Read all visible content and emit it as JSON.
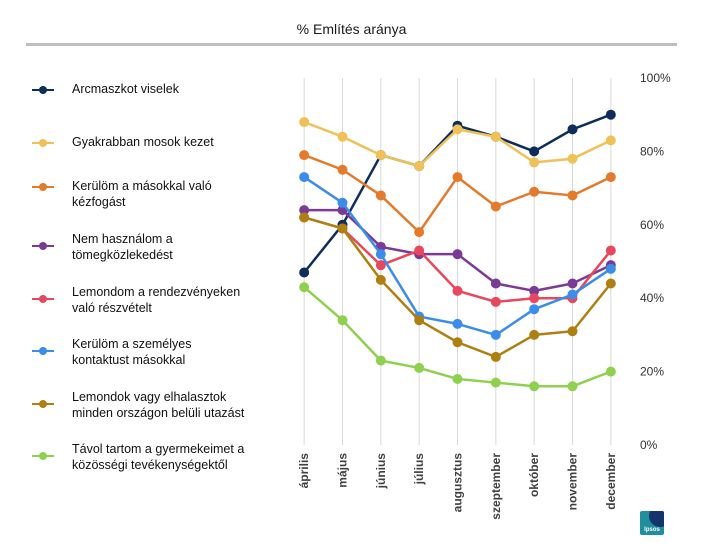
{
  "chart_data": {
    "type": "line",
    "title": "% Említés aránya",
    "categories": [
      "április",
      "május",
      "június",
      "július",
      "augusztus",
      "szeptember",
      "október",
      "november",
      "december"
    ],
    "ylim": [
      0,
      100
    ],
    "yticks": [
      "0%",
      "20%",
      "40%",
      "60%",
      "80%",
      "100%"
    ],
    "ytick_values": [
      0,
      20,
      40,
      60,
      80,
      100
    ],
    "series": [
      {
        "name": "Arcmaszkot viselek",
        "color": "#0f2d5a",
        "values": [
          47,
          60,
          79,
          76,
          87,
          84,
          80,
          86,
          90
        ]
      },
      {
        "name": "Gyakrabban mosok kezet",
        "color": "#f0c157",
        "values": [
          88,
          84,
          79,
          76,
          86,
          84,
          77,
          78,
          83
        ]
      },
      {
        "name": "Kerülöm a másokkal való kézfogást",
        "color": "#e37a2c",
        "values": [
          79,
          75,
          68,
          58,
          73,
          65,
          69,
          68,
          73
        ]
      },
      {
        "name": "Nem használom a tömegközlekedést",
        "color": "#7b3a96",
        "values": [
          64,
          64,
          54,
          52,
          52,
          44,
          42,
          44,
          49
        ]
      },
      {
        "name": "Lemondom a rendezvényeken való részvételt",
        "color": "#e8475d",
        "values": [
          62,
          59,
          49,
          53,
          42,
          39,
          40,
          40,
          53
        ]
      },
      {
        "name": "Kerülöm a személyes kontaktust másokkal",
        "color": "#3a8de8",
        "values": [
          73,
          66,
          52,
          35,
          33,
          30,
          37,
          41,
          48
        ]
      },
      {
        "name": "Lemondok vagy elhalasztok minden országon belüli utazást",
        "color": "#b07f12",
        "values": [
          62,
          59,
          45,
          34,
          28,
          24,
          30,
          31,
          44
        ]
      },
      {
        "name": "Távol tartom a gyermekeimet a közösségi tevékenységektől",
        "color": "#8fd14f",
        "values": [
          43,
          34,
          23,
          21,
          18,
          17,
          16,
          16,
          20
        ]
      }
    ],
    "legend_position": "left"
  },
  "legend_labels": {
    "l0": "Arcmaszkot viselek",
    "l1": "Gyakrabban mosok kezet",
    "l2a": "Kerülöm a másokkal való",
    "l2b": "kézfogást",
    "l3a": "Nem használom a",
    "l3b": "tömegközlekedést",
    "l4a": "Lemondom a rendezvényeken",
    "l4b": "való részvételt",
    "l5a": "Kerülöm a személyes",
    "l5b": "kontaktust másokkal",
    "l6a": "Lemondok vagy elhalasztok",
    "l6b": "minden országon belüli utazást",
    "l7a": "Távol tartom a gyermekeimet a",
    "l7b": "közösségi tevékenységektől"
  },
  "logo": {
    "text": "Ipsos"
  }
}
